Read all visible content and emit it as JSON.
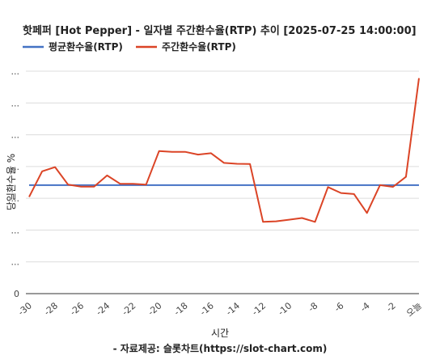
{
  "chart_data": {
    "type": "line",
    "title": "핫페퍼 [Hot Pepper] - 일자별 주간환수율(RTP) 추이 [2025-07-25 14:00:00]",
    "xlabel": "시간",
    "ylabel": "당일환수율 %",
    "source": "- 자료제공: 슬롯차트(https://slot-chart.com)",
    "legend_position": "top-left",
    "grid": true,
    "y_tick_labels": [
      "...",
      "...",
      "...",
      "...",
      "...",
      "...",
      "...",
      "0"
    ],
    "x": [
      -30,
      -29,
      -28,
      -27,
      -26,
      -25,
      -24,
      -23,
      -22,
      -21,
      -20,
      -19,
      -18,
      -17,
      -16,
      -15,
      -14,
      -13,
      -12,
      -11,
      -10,
      -9,
      -8,
      -7,
      -6,
      -5,
      -4,
      -3,
      -2,
      -1,
      0
    ],
    "x_tick_labels": [
      "-30",
      "-28",
      "-26",
      "-24",
      "-22",
      "-20",
      "-18",
      "-16",
      "-14",
      "-12",
      "-10",
      "-8",
      "-6",
      "-4",
      "-2",
      "오늘"
    ],
    "x_tick_values": [
      -30,
      -28,
      -26,
      -24,
      -22,
      -20,
      -18,
      -16,
      -14,
      -12,
      -10,
      -8,
      -6,
      -4,
      -2,
      0
    ],
    "xlim": [
      -30,
      0
    ],
    "ylim": [
      0,
      8
    ],
    "series": [
      {
        "name": "평균환수율(RTP)",
        "color": "#4472c4",
        "values": [
          3.9,
          3.9,
          3.9,
          3.9,
          3.9,
          3.9,
          3.9,
          3.9,
          3.9,
          3.9,
          3.9,
          3.9,
          3.9,
          3.9,
          3.9,
          3.9,
          3.9,
          3.9,
          3.9,
          3.9,
          3.9,
          3.9,
          3.9,
          3.9,
          3.9,
          3.9,
          3.9,
          3.9,
          3.9,
          3.9,
          3.9
        ]
      },
      {
        "name": "주간환수율(RTP)",
        "color": "#db4426",
        "values": [
          3.48,
          4.4,
          4.55,
          3.92,
          3.85,
          3.85,
          4.25,
          3.95,
          3.95,
          3.92,
          5.13,
          5.1,
          5.1,
          5.0,
          5.05,
          4.7,
          4.67,
          4.66,
          2.58,
          2.6,
          2.66,
          2.72,
          2.58,
          3.83,
          3.62,
          3.58,
          2.9,
          3.9,
          3.84,
          4.2,
          7.75
        ]
      }
    ]
  }
}
